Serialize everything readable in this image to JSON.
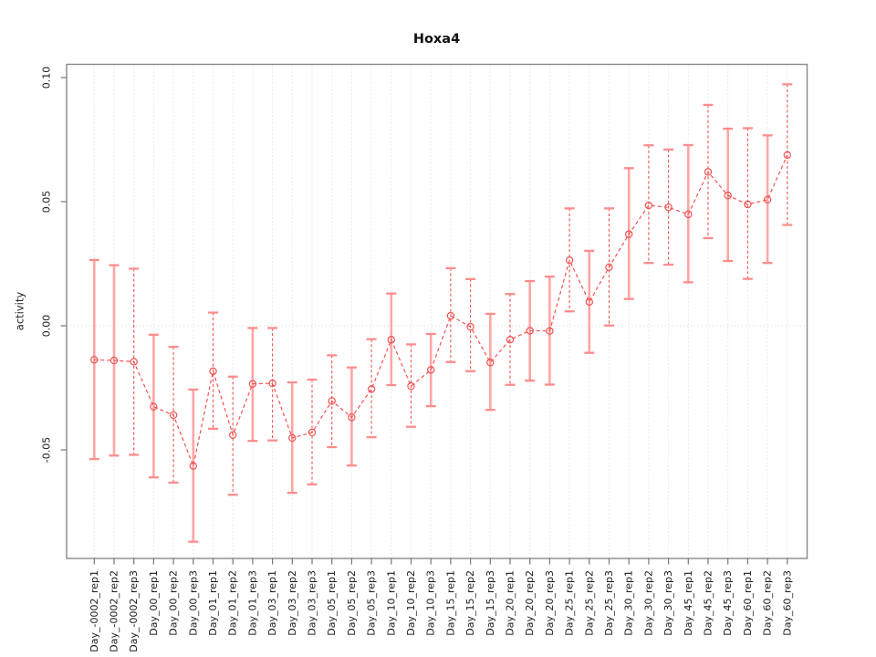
{
  "title": "Hoxa4",
  "colors": {
    "series_line": "#f25252",
    "marker_stroke": "#ef5350",
    "errorbar_solid": "#ffa6a6",
    "errorbar_dashed": "#ef5350",
    "errorbar_cap": "#fc8d8d",
    "grid": "#d8d8d8",
    "box_border": "#888888",
    "tick": "#777777",
    "text": "#1a1a1a"
  },
  "chart_data": {
    "type": "line",
    "title": "Hoxa4",
    "xlabel": "",
    "ylabel": "activity",
    "ylim": [
      -0.094,
      0.105
    ],
    "yticks": [
      -0.05,
      0,
      0.05,
      0.1
    ],
    "grid": "vertical dotted line at every category; horizontal dotted line at y=0",
    "legend_position": "none",
    "marker": "open-circle",
    "line_style": "dashed",
    "error_bars": true,
    "categories": [
      "Day_-0002_rep1",
      "Day_-0002_rep2",
      "Day_-0002_rep3",
      "Day_00_rep1",
      "Day_00_rep2",
      "Day_00_rep3",
      "Day_01_rep1",
      "Day_01_rep2",
      "Day_01_rep3",
      "Day_03_rep1",
      "Day_03_rep2",
      "Day_03_rep3",
      "Day_05_rep1",
      "Day_05_rep2",
      "Day_05_rep3",
      "Day_10_rep1",
      "Day_10_rep2",
      "Day_10_rep3",
      "Day_15_rep1",
      "Day_15_rep2",
      "Day_15_rep3",
      "Day_20_rep1",
      "Day_20_rep2",
      "Day_20_rep3",
      "Day_25_rep1",
      "Day_25_rep2",
      "Day_25_rep3",
      "Day_30_rep1",
      "Day_30_rep2",
      "Day_30_rep3",
      "Day_45_rep1",
      "Day_45_rep2",
      "Day_45_rep3",
      "Day_60_rep1",
      "Day_60_rep2",
      "Day_60_rep3"
    ],
    "series": [
      {
        "name": "activity",
        "values": [
          -0.0137,
          -0.014,
          -0.0145,
          -0.0326,
          -0.036,
          -0.0565,
          -0.0183,
          -0.044,
          -0.0234,
          -0.0232,
          -0.0452,
          -0.043,
          -0.0303,
          -0.0369,
          -0.0255,
          -0.0056,
          -0.0243,
          -0.0178,
          0.004,
          -0.0004,
          -0.0148,
          -0.0056,
          -0.002,
          -0.0021,
          0.0264,
          0.0096,
          0.0236,
          0.0369,
          0.0485,
          0.0477,
          0.0449,
          0.062,
          0.0525,
          0.0489,
          0.0508,
          0.0688
        ],
        "error_low": [
          -0.0537,
          -0.0523,
          -0.052,
          -0.0611,
          -0.0632,
          -0.087,
          -0.0415,
          -0.0681,
          -0.0464,
          -0.0462,
          -0.0673,
          -0.0639,
          -0.0489,
          -0.0563,
          -0.0449,
          -0.0239,
          -0.0407,
          -0.0324,
          -0.0146,
          -0.0183,
          -0.0339,
          -0.0238,
          -0.0221,
          -0.0237,
          0.0058,
          -0.0109,
          0.0001,
          0.0108,
          0.0253,
          0.0246,
          0.0175,
          0.0353,
          0.0261,
          0.0189,
          0.0253,
          0.0406
        ],
        "error_high": [
          0.0265,
          0.0244,
          0.023,
          -0.0036,
          -0.0085,
          -0.0257,
          0.0053,
          -0.0205,
          -0.0009,
          -0.0009,
          -0.0228,
          -0.0217,
          -0.0119,
          -0.0168,
          -0.0054,
          0.013,
          -0.0075,
          -0.0033,
          0.0232,
          0.0188,
          0.0048,
          0.0128,
          0.018,
          0.0198,
          0.0473,
          0.0302,
          0.0473,
          0.0635,
          0.0727,
          0.071,
          0.0728,
          0.089,
          0.0794,
          0.0796,
          0.0767,
          0.0973
        ],
        "bar_styles": [
          "solid",
          "solid",
          "dashed",
          "solid",
          "dashed",
          "solid",
          "dashed",
          "dashed",
          "solid",
          "dashed",
          "solid",
          "dashed",
          "dashed",
          "solid",
          "dashed",
          "solid",
          "dashed",
          "solid",
          "dashed",
          "dashed",
          "solid",
          "dashed",
          "solid",
          "solid",
          "dashed",
          "solid",
          "dashed",
          "solid",
          "dashed",
          "dashed",
          "solid",
          "dashed",
          "solid",
          "dashed",
          "solid",
          "dashed"
        ]
      }
    ]
  }
}
